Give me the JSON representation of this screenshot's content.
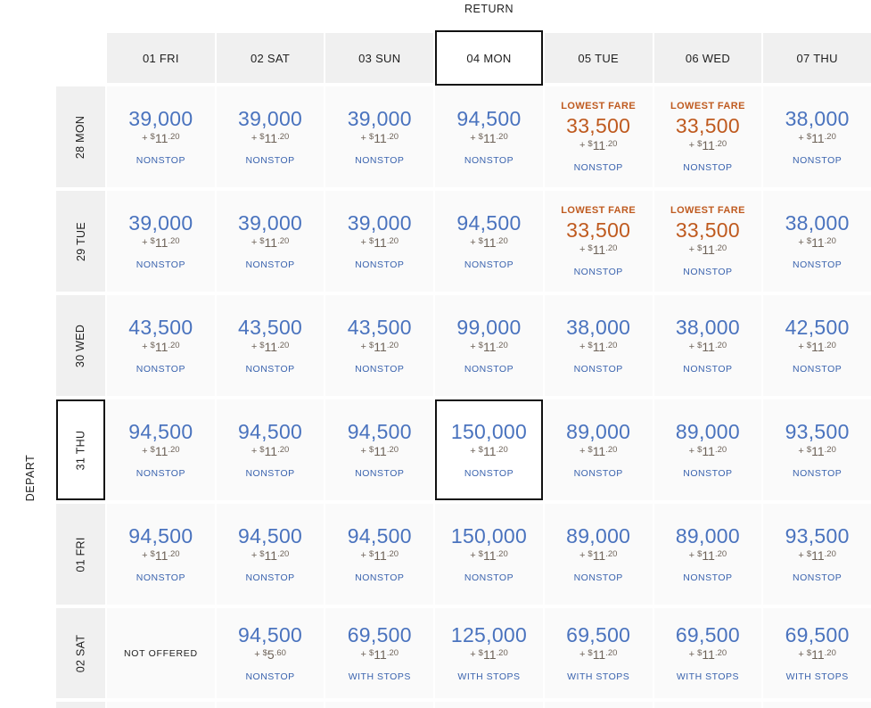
{
  "page": {
    "return_label": "RETURN",
    "depart_label": "DEPART"
  },
  "labels": {
    "plus": "+",
    "currency": "$"
  },
  "columns": [
    {
      "label": "01 FRI",
      "selected": false
    },
    {
      "label": "02 SAT",
      "selected": false
    },
    {
      "label": "03 SUN",
      "selected": false
    },
    {
      "label": "04 MON",
      "selected": true
    },
    {
      "label": "05 TUE",
      "selected": false
    },
    {
      "label": "06 WED",
      "selected": false
    },
    {
      "label": "07 THU",
      "selected": false
    }
  ],
  "rows": [
    {
      "label": "28 MON",
      "selected": false,
      "cells": [
        {
          "miles": "39,000",
          "tax_main": "11",
          "tax_sup": ".20",
          "stops": "NONSTOP"
        },
        {
          "miles": "39,000",
          "tax_main": "11",
          "tax_sup": ".20",
          "stops": "NONSTOP"
        },
        {
          "miles": "39,000",
          "tax_main": "11",
          "tax_sup": ".20",
          "stops": "NONSTOP"
        },
        {
          "miles": "94,500",
          "tax_main": "11",
          "tax_sup": ".20",
          "stops": "NONSTOP"
        },
        {
          "lowest_label": "LOWEST FARE",
          "miles": "33,500",
          "tax_main": "11",
          "tax_sup": ".20",
          "stops": "NONSTOP"
        },
        {
          "lowest_label": "LOWEST FARE",
          "miles": "33,500",
          "tax_main": "11",
          "tax_sup": ".20",
          "stops": "NONSTOP"
        },
        {
          "miles": "38,000",
          "tax_main": "11",
          "tax_sup": ".20",
          "stops": "NONSTOP"
        }
      ]
    },
    {
      "label": "29 TUE",
      "selected": false,
      "cells": [
        {
          "miles": "39,000",
          "tax_main": "11",
          "tax_sup": ".20",
          "stops": "NONSTOP"
        },
        {
          "miles": "39,000",
          "tax_main": "11",
          "tax_sup": ".20",
          "stops": "NONSTOP"
        },
        {
          "miles": "39,000",
          "tax_main": "11",
          "tax_sup": ".20",
          "stops": "NONSTOP"
        },
        {
          "miles": "94,500",
          "tax_main": "11",
          "tax_sup": ".20",
          "stops": "NONSTOP"
        },
        {
          "lowest_label": "LOWEST FARE",
          "miles": "33,500",
          "tax_main": "11",
          "tax_sup": ".20",
          "stops": "NONSTOP"
        },
        {
          "lowest_label": "LOWEST FARE",
          "miles": "33,500",
          "tax_main": "11",
          "tax_sup": ".20",
          "stops": "NONSTOP"
        },
        {
          "miles": "38,000",
          "tax_main": "11",
          "tax_sup": ".20",
          "stops": "NONSTOP"
        }
      ]
    },
    {
      "label": "30 WED",
      "selected": false,
      "cells": [
        {
          "miles": "43,500",
          "tax_main": "11",
          "tax_sup": ".20",
          "stops": "NONSTOP"
        },
        {
          "miles": "43,500",
          "tax_main": "11",
          "tax_sup": ".20",
          "stops": "NONSTOP"
        },
        {
          "miles": "43,500",
          "tax_main": "11",
          "tax_sup": ".20",
          "stops": "NONSTOP"
        },
        {
          "miles": "99,000",
          "tax_main": "11",
          "tax_sup": ".20",
          "stops": "NONSTOP"
        },
        {
          "miles": "38,000",
          "tax_main": "11",
          "tax_sup": ".20",
          "stops": "NONSTOP"
        },
        {
          "miles": "38,000",
          "tax_main": "11",
          "tax_sup": ".20",
          "stops": "NONSTOP"
        },
        {
          "miles": "42,500",
          "tax_main": "11",
          "tax_sup": ".20",
          "stops": "NONSTOP"
        }
      ]
    },
    {
      "label": "31 THU",
      "selected": true,
      "cells": [
        {
          "miles": "94,500",
          "tax_main": "11",
          "tax_sup": ".20",
          "stops": "NONSTOP"
        },
        {
          "miles": "94,500",
          "tax_main": "11",
          "tax_sup": ".20",
          "stops": "NONSTOP"
        },
        {
          "miles": "94,500",
          "tax_main": "11",
          "tax_sup": ".20",
          "stops": "NONSTOP"
        },
        {
          "miles": "150,000",
          "tax_main": "11",
          "tax_sup": ".20",
          "stops": "NONSTOP",
          "selected": true
        },
        {
          "miles": "89,000",
          "tax_main": "11",
          "tax_sup": ".20",
          "stops": "NONSTOP"
        },
        {
          "miles": "89,000",
          "tax_main": "11",
          "tax_sup": ".20",
          "stops": "NONSTOP"
        },
        {
          "miles": "93,500",
          "tax_main": "11",
          "tax_sup": ".20",
          "stops": "NONSTOP"
        }
      ]
    },
    {
      "label": "01 FRI",
      "selected": false,
      "cells": [
        {
          "miles": "94,500",
          "tax_main": "11",
          "tax_sup": ".20",
          "stops": "NONSTOP"
        },
        {
          "miles": "94,500",
          "tax_main": "11",
          "tax_sup": ".20",
          "stops": "NONSTOP"
        },
        {
          "miles": "94,500",
          "tax_main": "11",
          "tax_sup": ".20",
          "stops": "NONSTOP"
        },
        {
          "miles": "150,000",
          "tax_main": "11",
          "tax_sup": ".20",
          "stops": "NONSTOP"
        },
        {
          "miles": "89,000",
          "tax_main": "11",
          "tax_sup": ".20",
          "stops": "NONSTOP"
        },
        {
          "miles": "89,000",
          "tax_main": "11",
          "tax_sup": ".20",
          "stops": "NONSTOP"
        },
        {
          "miles": "93,500",
          "tax_main": "11",
          "tax_sup": ".20",
          "stops": "NONSTOP"
        }
      ]
    },
    {
      "label": "02 SAT",
      "selected": false,
      "cells": [
        {
          "not_offered": "NOT OFFERED"
        },
        {
          "miles": "94,500",
          "tax_main": "5",
          "tax_sup": ".60",
          "stops": "NONSTOP"
        },
        {
          "miles": "69,500",
          "tax_main": "11",
          "tax_sup": ".20",
          "stops": "WITH STOPS"
        },
        {
          "miles": "125,000",
          "tax_main": "11",
          "tax_sup": ".20",
          "stops": "WITH STOPS"
        },
        {
          "miles": "69,500",
          "tax_main": "11",
          "tax_sup": ".20",
          "stops": "WITH STOPS"
        },
        {
          "miles": "69,500",
          "tax_main": "11",
          "tax_sup": ".20",
          "stops": "WITH STOPS"
        },
        {
          "miles": "69,500",
          "tax_main": "11",
          "tax_sup": ".20",
          "stops": "WITH STOPS"
        }
      ]
    }
  ],
  "colors": {
    "price_blue": "#4a73be",
    "stops_blue": "#3a63ae",
    "lowest_orange": "#bf5a1f",
    "tax_gray": "#6e6359",
    "header_text": "#1f1f1f",
    "selected_border": "#111111",
    "header_bg": "#f0f0f0",
    "cell_bg": "#fafafa"
  }
}
